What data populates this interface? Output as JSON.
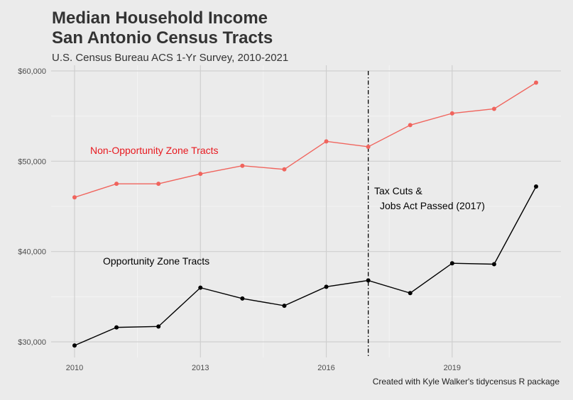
{
  "chart_data": {
    "type": "line",
    "title_line1": "Median Household Income",
    "title_line2": "San Antonio Census Tracts",
    "subtitle": "U.S. Census Bureau ACS 1-Yr Survey, 2010-2021",
    "caption": "Created with Kyle Walker's tidycensus R package",
    "xlabel": "",
    "ylabel": "",
    "x": [
      2010,
      2011,
      2012,
      2013,
      2014,
      2015,
      2016,
      2017,
      2018,
      2019,
      2020,
      2021
    ],
    "xlim": [
      2010,
      2021
    ],
    "ylim": [
      30000,
      60000
    ],
    "x_ticks": [
      2010,
      2013,
      2016,
      2019
    ],
    "x_tick_labels": [
      "2010",
      "2013",
      "2016",
      "2019"
    ],
    "y_ticks": [
      30000,
      40000,
      50000,
      60000
    ],
    "y_tick_labels": [
      "$30,000",
      "$40,000",
      "$50,000",
      "$60,000"
    ],
    "grid": true,
    "legend": "none",
    "series": [
      {
        "name": "Non-Opportunity Zone Tracts",
        "color": "#f0645d",
        "values": [
          46000,
          47500,
          47500,
          48600,
          49500,
          49100,
          52200,
          51600,
          54000,
          55300,
          55800,
          58700
        ]
      },
      {
        "name": "Opportunity Zone Tracts",
        "color": "#000000",
        "values": [
          29600,
          31600,
          31700,
          36000,
          34800,
          34000,
          36100,
          36800,
          35400,
          38700,
          38600,
          47200
        ]
      }
    ],
    "vline": {
      "x": 2017,
      "label_line1": "Tax Cuts &",
      "label_line2": "Jobs Act Passed (2017)"
    }
  }
}
